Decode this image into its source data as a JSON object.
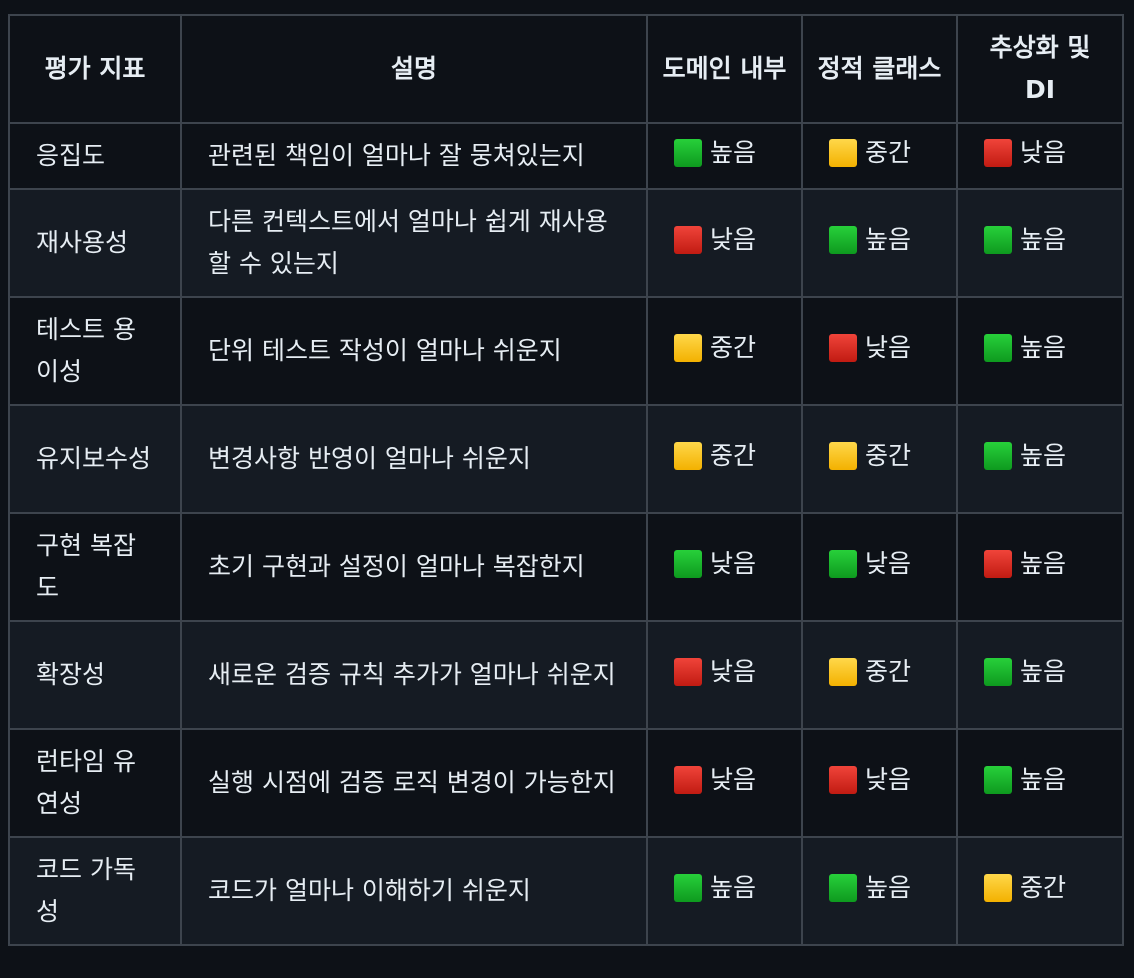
{
  "colors": {
    "high": "#14a829",
    "mid": "#f7c100",
    "low": "#d5281e",
    "background": "#0d1117",
    "border": "#3d444d"
  },
  "table": {
    "headers": [
      "평가 지표",
      "설명",
      "도메인 내부",
      "정적 클래스",
      "추상화 및 DI"
    ],
    "rows": [
      {
        "metric": "응집도",
        "description": "관련된 책임이 얼마나 잘 뭉쳐있는지",
        "ratings": [
          {
            "icon": "green-square-icon",
            "label": "높음"
          },
          {
            "icon": "yellow-square-icon",
            "label": "중간"
          },
          {
            "icon": "red-square-icon",
            "label": "낮음"
          }
        ]
      },
      {
        "metric": "재사용성",
        "description": "다른 컨텍스트에서 얼마나 쉽게 재사용할 수 있는지",
        "ratings": [
          {
            "icon": "red-square-icon",
            "label": "낮음"
          },
          {
            "icon": "green-square-icon",
            "label": "높음"
          },
          {
            "icon": "green-square-icon",
            "label": "높음"
          }
        ]
      },
      {
        "metric": "테스트 용이성",
        "description": "단위 테스트 작성이 얼마나 쉬운지",
        "ratings": [
          {
            "icon": "yellow-square-icon",
            "label": "중간"
          },
          {
            "icon": "red-square-icon",
            "label": "낮음"
          },
          {
            "icon": "green-square-icon",
            "label": "높음"
          }
        ]
      },
      {
        "metric": "유지보수성",
        "description": "변경사항 반영이 얼마나 쉬운지",
        "ratings": [
          {
            "icon": "yellow-square-icon",
            "label": "중간"
          },
          {
            "icon": "yellow-square-icon",
            "label": "중간"
          },
          {
            "icon": "green-square-icon",
            "label": "높음"
          }
        ]
      },
      {
        "metric": "구현 복잡도",
        "description": "초기 구현과 설정이 얼마나 복잡한지",
        "ratings": [
          {
            "icon": "green-square-icon",
            "label": "낮음"
          },
          {
            "icon": "green-square-icon",
            "label": "낮음"
          },
          {
            "icon": "red-square-icon",
            "label": "높음"
          }
        ]
      },
      {
        "metric": "확장성",
        "description": "새로운 검증 규칙 추가가 얼마나 쉬운지",
        "ratings": [
          {
            "icon": "red-square-icon",
            "label": "낮음"
          },
          {
            "icon": "yellow-square-icon",
            "label": "중간"
          },
          {
            "icon": "green-square-icon",
            "label": "높음"
          }
        ]
      },
      {
        "metric": "런타임 유연성",
        "description": "실행 시점에 검증 로직 변경이 가능한지",
        "ratings": [
          {
            "icon": "red-square-icon",
            "label": "낮음"
          },
          {
            "icon": "red-square-icon",
            "label": "낮음"
          },
          {
            "icon": "green-square-icon",
            "label": "높음"
          }
        ]
      },
      {
        "metric": "코드 가독성",
        "description": "코드가 얼마나 이해하기 쉬운지",
        "ratings": [
          {
            "icon": "green-square-icon",
            "label": "높음"
          },
          {
            "icon": "green-square-icon",
            "label": "높음"
          },
          {
            "icon": "yellow-square-icon",
            "label": "중간"
          }
        ]
      }
    ]
  }
}
